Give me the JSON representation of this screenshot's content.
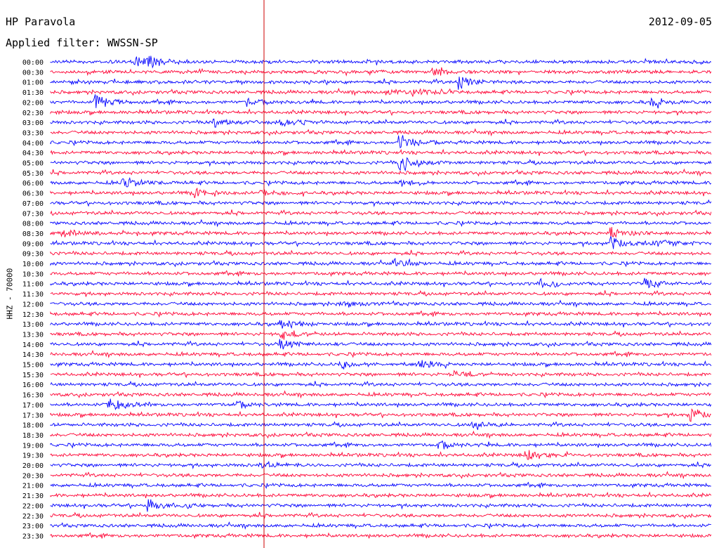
{
  "header": {
    "station": "HP Paravola",
    "filter": "Applied filter: WWSSN-SP",
    "date": "2012-09-05",
    "channel": "HHZ - 70000"
  },
  "colors": {
    "trace_a": "#0000ff",
    "trace_b": "#ff0033",
    "marker": "#cc0000"
  },
  "chart_data": {
    "type": "line",
    "title": "HP Paravola",
    "subtitle": "Applied filter: WWSSN-SP",
    "ylabel": "HHZ - 70000",
    "row_labels": [
      "00:00",
      "00:30",
      "01:00",
      "01:30",
      "02:00",
      "02:30",
      "03:00",
      "03:30",
      "04:00",
      "04:30",
      "05:00",
      "05:30",
      "06:00",
      "06:30",
      "07:00",
      "07:30",
      "08:00",
      "08:30",
      "09:00",
      "09:30",
      "10:00",
      "10:30",
      "11:00",
      "11:30",
      "12:00",
      "12:30",
      "13:00",
      "13:30",
      "14:00",
      "14:30",
      "15:00",
      "15:30",
      "16:00",
      "16:30",
      "17:00",
      "17:30",
      "18:00",
      "18:30",
      "19:00",
      "19:30",
      "20:00",
      "20:30",
      "21:00",
      "21:30",
      "22:00",
      "22:30",
      "23:00",
      "23:30"
    ],
    "row_colors": [
      "blue",
      "red"
    ],
    "events": [
      {
        "row": 0,
        "pos": 0.13,
        "amp": 6
      },
      {
        "row": 0,
        "pos": 0.15,
        "amp": 5
      },
      {
        "row": 1,
        "pos": 0.58,
        "amp": 4
      },
      {
        "row": 2,
        "pos": 0.62,
        "amp": 7
      },
      {
        "row": 3,
        "pos": 0.55,
        "amp": 4
      },
      {
        "row": 3,
        "pos": 0.51,
        "amp": 3
      },
      {
        "row": 4,
        "pos": 0.07,
        "amp": 8
      },
      {
        "row": 4,
        "pos": 0.3,
        "amp": 4
      },
      {
        "row": 4,
        "pos": 0.91,
        "amp": 5
      },
      {
        "row": 6,
        "pos": 0.25,
        "amp": 4
      },
      {
        "row": 6,
        "pos": 0.35,
        "amp": 5
      },
      {
        "row": 8,
        "pos": 0.53,
        "amp": 9
      },
      {
        "row": 10,
        "pos": 0.53,
        "amp": 10
      },
      {
        "row": 12,
        "pos": 0.11,
        "amp": 6
      },
      {
        "row": 12,
        "pos": 0.53,
        "amp": 5
      },
      {
        "row": 13,
        "pos": 0.22,
        "amp": 4
      },
      {
        "row": 13,
        "pos": 0.32,
        "amp": 3
      },
      {
        "row": 17,
        "pos": 0.02,
        "amp": 4
      },
      {
        "row": 17,
        "pos": 0.85,
        "amp": 6
      },
      {
        "row": 18,
        "pos": 0.85,
        "amp": 7
      },
      {
        "row": 18,
        "pos": 0.92,
        "amp": 6
      },
      {
        "row": 20,
        "pos": 0.52,
        "amp": 4
      },
      {
        "row": 22,
        "pos": 0.9,
        "amp": 6
      },
      {
        "row": 22,
        "pos": 0.74,
        "amp": 4
      },
      {
        "row": 24,
        "pos": 0.44,
        "amp": 3
      },
      {
        "row": 26,
        "pos": 0.35,
        "amp": 7
      },
      {
        "row": 27,
        "pos": 0.35,
        "amp": 6
      },
      {
        "row": 28,
        "pos": 0.35,
        "amp": 5
      },
      {
        "row": 30,
        "pos": 0.44,
        "amp": 5
      },
      {
        "row": 30,
        "pos": 0.56,
        "amp": 4
      },
      {
        "row": 31,
        "pos": 0.61,
        "amp": 4
      },
      {
        "row": 34,
        "pos": 0.09,
        "amp": 8
      },
      {
        "row": 34,
        "pos": 0.28,
        "amp": 4
      },
      {
        "row": 35,
        "pos": 0.97,
        "amp": 7
      },
      {
        "row": 36,
        "pos": 0.64,
        "amp": 4
      },
      {
        "row": 38,
        "pos": 0.59,
        "amp": 4
      },
      {
        "row": 39,
        "pos": 0.72,
        "amp": 7
      },
      {
        "row": 40,
        "pos": 0.32,
        "amp": 3
      },
      {
        "row": 44,
        "pos": 0.15,
        "amp": 6
      }
    ]
  }
}
